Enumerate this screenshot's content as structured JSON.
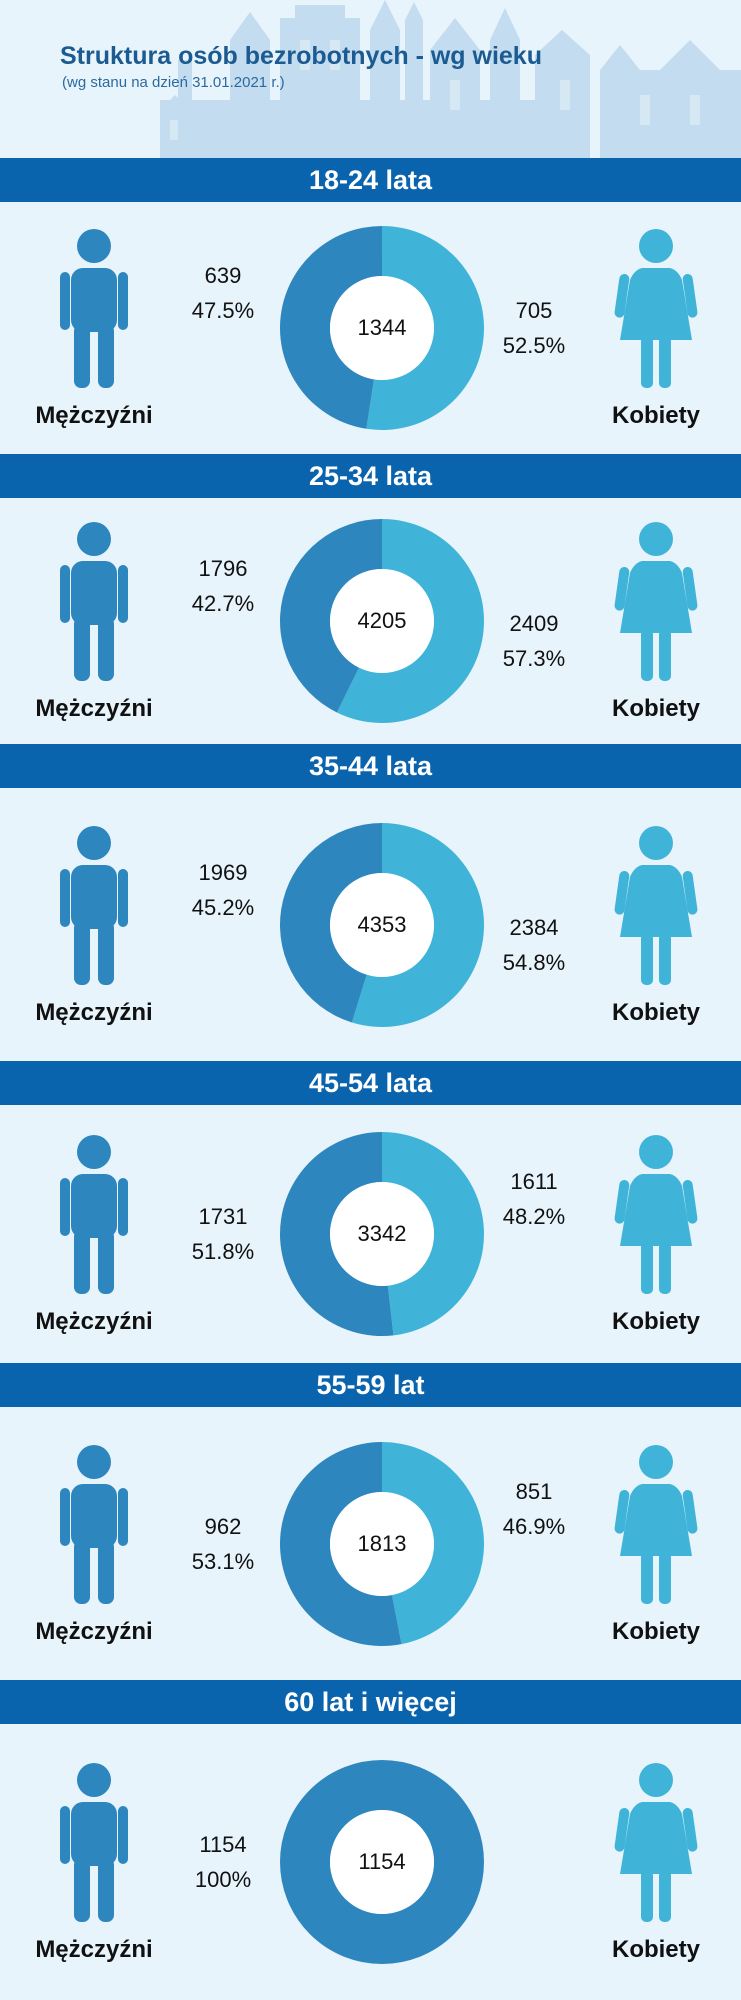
{
  "title": "Struktura osób bezrobotnych - wg wieku",
  "subtitle": "(wg stanu na dzień 31.01.2021 r.)",
  "labels": {
    "men": "Mężczyźni",
    "women": "Kobiety"
  },
  "colors": {
    "men": "#2e86be",
    "women": "#40b4d8",
    "band": "#0a63ad",
    "title": "#1b5b92",
    "background": "#e8f4fc"
  },
  "icons": {
    "men": "man-icon",
    "women": "woman-icon"
  },
  "chart_data": [
    {
      "type": "pie",
      "title": "18-24 lata",
      "total": "1344",
      "series": [
        {
          "name": "Mężczyźni",
          "value": 639,
          "percent": "47.5%"
        },
        {
          "name": "Kobiety",
          "value": 705,
          "percent": "52.5%"
        }
      ]
    },
    {
      "type": "pie",
      "title": "25-34 lata",
      "total": "4205",
      "series": [
        {
          "name": "Mężczyźni",
          "value": 1796,
          "percent": "42.7%"
        },
        {
          "name": "Kobiety",
          "value": 2409,
          "percent": "57.3%"
        }
      ]
    },
    {
      "type": "pie",
      "title": "35-44 lata",
      "total": "4353",
      "series": [
        {
          "name": "Mężczyźni",
          "value": 1969,
          "percent": "45.2%"
        },
        {
          "name": "Kobiety",
          "value": 2384,
          "percent": "54.8%"
        }
      ]
    },
    {
      "type": "pie",
      "title": "45-54 lata",
      "total": "3342",
      "series": [
        {
          "name": "Mężczyźni",
          "value": 1731,
          "percent": "51.8%"
        },
        {
          "name": "Kobiety",
          "value": 1611,
          "percent": "48.2%"
        }
      ]
    },
    {
      "type": "pie",
      "title": "55-59 lat",
      "total": "1813",
      "series": [
        {
          "name": "Mężczyźni",
          "value": 962,
          "percent": "53.1%"
        },
        {
          "name": "Kobiety",
          "value": 851,
          "percent": "46.9%"
        }
      ]
    },
    {
      "type": "pie",
      "title": "60 lat i więcej",
      "total": "1154",
      "series": [
        {
          "name": "Mężczyźni",
          "value": 1154,
          "percent": "100%"
        }
      ]
    }
  ]
}
